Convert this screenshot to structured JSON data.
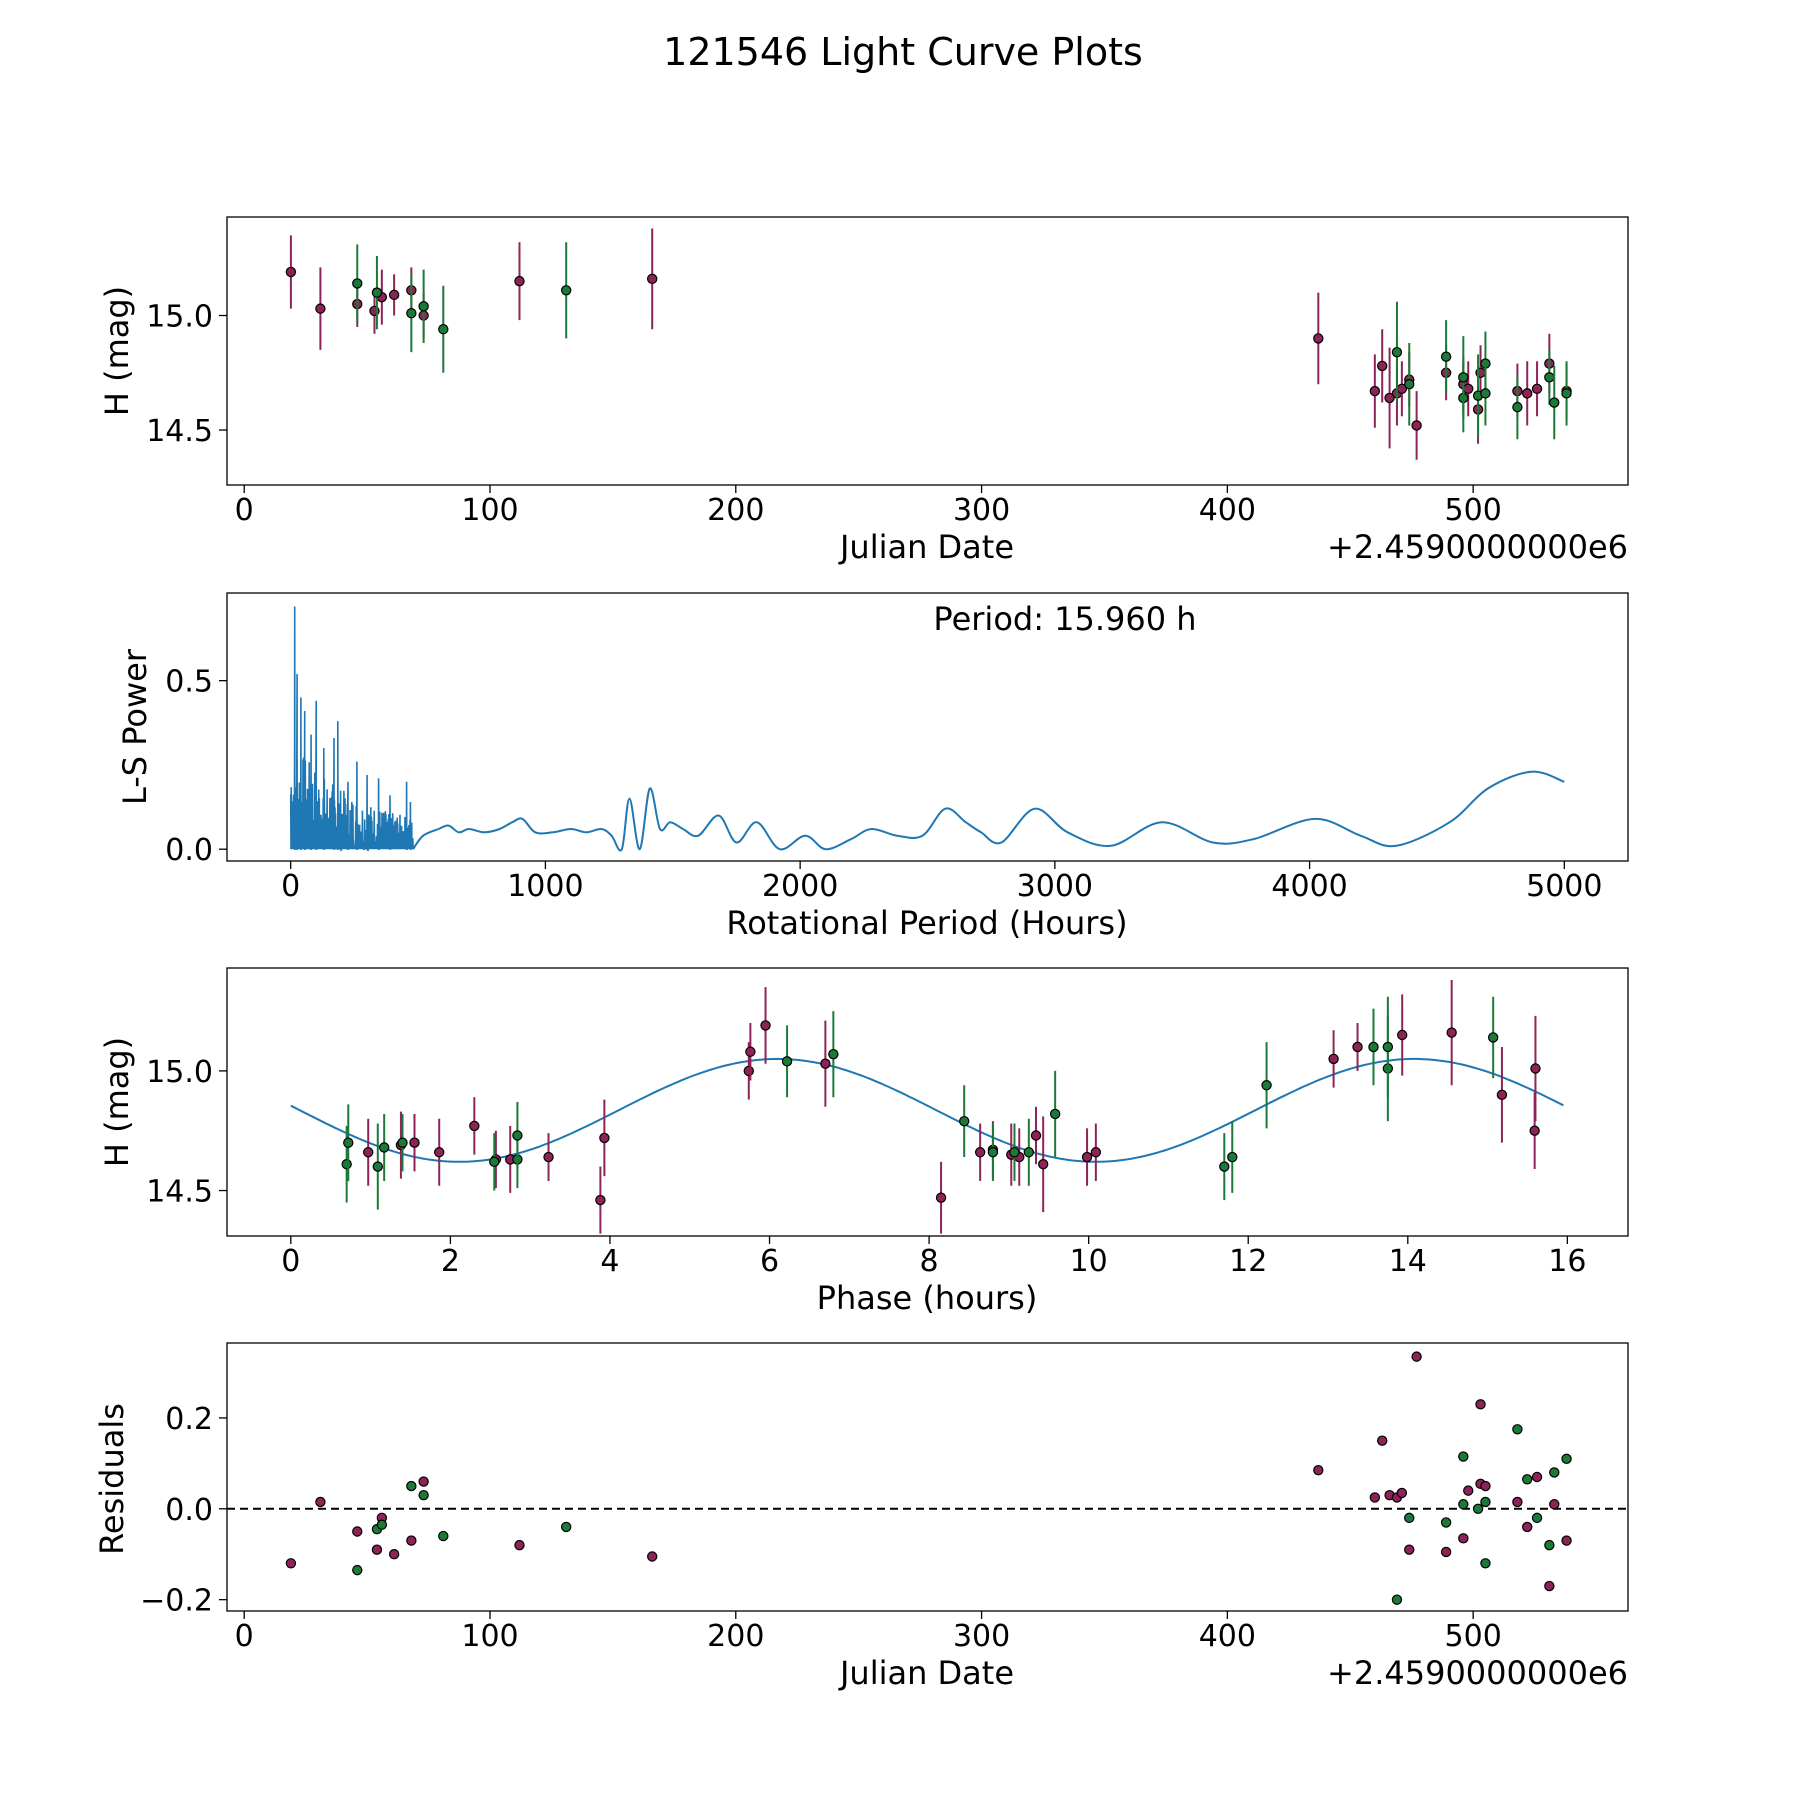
{
  "title": "121546 Light Curve Plots",
  "colors": {
    "magenta": "#8e2357",
    "green": "#1b7a37",
    "periodogram": "#1f77b4",
    "zero_line": "#000000"
  },
  "chart_data": [
    {
      "id": "lightcurve",
      "type": "scatter",
      "xlabel": "Julian Date",
      "ylabel": "H (mag)",
      "offset_text": "+2.4590000000e6",
      "xlim": [
        -7,
        563
      ],
      "ylim": [
        14.26,
        15.43
      ],
      "y_inverted": true,
      "xticks": [
        0,
        100,
        200,
        300,
        400,
        500
      ],
      "yticks": [
        15.0,
        14.5
      ],
      "series": [
        {
          "name": "magenta",
          "color": "#8e2357",
          "points": [
            [
              19,
              15.19,
              0.16
            ],
            [
              31,
              15.03,
              0.18
            ],
            [
              46,
              15.05,
              0.1
            ],
            [
              53,
              15.02,
              0.1
            ],
            [
              56,
              15.08,
              0.12
            ],
            [
              61,
              15.09,
              0.09
            ],
            [
              68,
              15.11,
              0.1
            ],
            [
              73,
              15.0,
              0.1
            ],
            [
              112,
              15.15,
              0.17
            ],
            [
              166,
              15.16,
              0.22
            ],
            [
              437,
              14.9,
              0.2
            ],
            [
              460,
              14.67,
              0.16
            ],
            [
              463,
              14.78,
              0.16
            ],
            [
              466,
              14.64,
              0.22
            ],
            [
              469,
              14.66,
              0.14
            ],
            [
              471,
              14.68,
              0.12
            ],
            [
              474,
              14.72,
              0.12
            ],
            [
              477,
              14.52,
              0.15
            ],
            [
              489,
              14.75,
              0.12
            ],
            [
              496,
              14.7,
              0.12
            ],
            [
              498,
              14.68,
              0.12
            ],
            [
              502,
              14.59,
              0.15
            ],
            [
              503,
              14.75,
              0.12
            ],
            [
              518,
              14.67,
              0.12
            ],
            [
              522,
              14.66,
              0.14
            ],
            [
              526,
              14.68,
              0.12
            ],
            [
              531,
              14.79,
              0.13
            ],
            [
              538,
              14.67,
              0.12
            ]
          ]
        },
        {
          "name": "green",
          "color": "#1b7a37",
          "points": [
            [
              46,
              15.14,
              0.17
            ],
            [
              54,
              15.1,
              0.16
            ],
            [
              68,
              15.01,
              0.17
            ],
            [
              73,
              15.04,
              0.16
            ],
            [
              81,
              14.94,
              0.19
            ],
            [
              131,
              15.11,
              0.21
            ],
            [
              469,
              14.84,
              0.22
            ],
            [
              474,
              14.7,
              0.18
            ],
            [
              489,
              14.82,
              0.16
            ],
            [
              496,
              14.64,
              0.15
            ],
            [
              496,
              14.73,
              0.18
            ],
            [
              502,
              14.65,
              0.18
            ],
            [
              505,
              14.79,
              0.14
            ],
            [
              505,
              14.66,
              0.14
            ],
            [
              518,
              14.6,
              0.14
            ],
            [
              531,
              14.73,
              0.12
            ],
            [
              533,
              14.62,
              0.16
            ],
            [
              538,
              14.66,
              0.14
            ]
          ]
        }
      ]
    },
    {
      "id": "periodogram",
      "type": "line",
      "xlabel": "Rotational Period (Hours)",
      "ylabel": "L-S Power",
      "annotation": "Period: 15.960 h",
      "xlim": [
        -250,
        5250
      ],
      "ylim": [
        -0.035,
        0.76
      ],
      "xticks": [
        0,
        1000,
        2000,
        3000,
        4000,
        5000
      ],
      "yticks": [
        0.0,
        0.5
      ],
      "peaks": [
        [
          15.96,
          0.72
        ],
        [
          25,
          0.52
        ],
        [
          40,
          0.45
        ],
        [
          55,
          0.41
        ],
        [
          80,
          0.34
        ],
        [
          100,
          0.44
        ],
        [
          130,
          0.3
        ],
        [
          170,
          0.33
        ],
        [
          185,
          0.38
        ],
        [
          225,
          0.2
        ],
        [
          260,
          0.26
        ],
        [
          300,
          0.22
        ],
        [
          345,
          0.21
        ],
        [
          390,
          0.16
        ],
        [
          455,
          0.2
        ],
        [
          470,
          0.14
        ]
      ],
      "smooth": [
        [
          480,
          0.0
        ],
        [
          520,
          0.04
        ],
        [
          580,
          0.06
        ],
        [
          620,
          0.07
        ],
        [
          660,
          0.05
        ],
        [
          700,
          0.06
        ],
        [
          760,
          0.05
        ],
        [
          820,
          0.06
        ],
        [
          870,
          0.08
        ],
        [
          910,
          0.09
        ],
        [
          960,
          0.05
        ],
        [
          1030,
          0.05
        ],
        [
          1100,
          0.06
        ],
        [
          1160,
          0.05
        ],
        [
          1220,
          0.06
        ],
        [
          1260,
          0.04
        ],
        [
          1300,
          0.0
        ],
        [
          1330,
          0.15
        ],
        [
          1370,
          0.0
        ],
        [
          1410,
          0.18
        ],
        [
          1450,
          0.06
        ],
        [
          1490,
          0.08
        ],
        [
          1540,
          0.06
        ],
        [
          1600,
          0.04
        ],
        [
          1680,
          0.1
        ],
        [
          1750,
          0.02
        ],
        [
          1830,
          0.08
        ],
        [
          1920,
          0.0
        ],
        [
          2020,
          0.04
        ],
        [
          2100,
          0.0
        ],
        [
          2200,
          0.03
        ],
        [
          2280,
          0.06
        ],
        [
          2380,
          0.04
        ],
        [
          2480,
          0.04
        ],
        [
          2570,
          0.12
        ],
        [
          2650,
          0.08
        ],
        [
          2710,
          0.05
        ],
        [
          2790,
          0.02
        ],
        [
          2920,
          0.12
        ],
        [
          3050,
          0.05
        ],
        [
          3220,
          0.01
        ],
        [
          3420,
          0.08
        ],
        [
          3620,
          0.02
        ],
        [
          3780,
          0.03
        ],
        [
          4020,
          0.09
        ],
        [
          4200,
          0.04
        ],
        [
          4340,
          0.01
        ],
        [
          4550,
          0.08
        ],
        [
          4700,
          0.18
        ],
        [
          4870,
          0.23
        ],
        [
          5000,
          0.2
        ]
      ]
    },
    {
      "id": "phased",
      "type": "scatter",
      "xlabel": "Phase (hours)",
      "ylabel": "H (mag)",
      "xlim": [
        -0.8,
        16.76
      ],
      "ylim": [
        14.31,
        15.43
      ],
      "y_inverted": true,
      "xticks": [
        0,
        2,
        4,
        6,
        8,
        10,
        12,
        14,
        16
      ],
      "yticks": [
        15.0,
        14.5
      ],
      "fit": {
        "mean": 14.835,
        "amplitude": 0.215,
        "period": 7.98,
        "phase_max": 6.1
      },
      "series": [
        {
          "name": "magenta",
          "color": "#8e2357",
          "points": [
            [
              0.97,
              14.66,
              0.14
            ],
            [
              1.38,
              14.69,
              0.14
            ],
            [
              1.55,
              14.7,
              0.12
            ],
            [
              1.86,
              14.66,
              0.14
            ],
            [
              2.3,
              14.77,
              0.12
            ],
            [
              2.57,
              14.63,
              0.12
            ],
            [
              2.75,
              14.63,
              0.14
            ],
            [
              3.23,
              14.64,
              0.1
            ],
            [
              3.88,
              14.46,
              0.14
            ],
            [
              3.93,
              14.72,
              0.16
            ],
            [
              5.74,
              15.0,
              0.12
            ],
            [
              5.76,
              15.08,
              0.12
            ],
            [
              5.95,
              15.19,
              0.16
            ],
            [
              6.7,
              15.03,
              0.18
            ],
            [
              8.15,
              14.47,
              0.15
            ],
            [
              8.64,
              14.66,
              0.12
            ],
            [
              8.8,
              14.67,
              0.12
            ],
            [
              9.03,
              14.65,
              0.13
            ],
            [
              9.13,
              14.64,
              0.12
            ],
            [
              9.34,
              14.73,
              0.12
            ],
            [
              9.43,
              14.61,
              0.2
            ],
            [
              9.98,
              14.64,
              0.12
            ],
            [
              10.09,
              14.66,
              0.12
            ],
            [
              13.07,
              15.05,
              0.12
            ],
            [
              13.37,
              15.1,
              0.1
            ],
            [
              13.93,
              15.15,
              0.17
            ],
            [
              14.55,
              15.16,
              0.22
            ],
            [
              15.18,
              14.9,
              0.2
            ],
            [
              15.59,
              14.75,
              0.16
            ],
            [
              15.6,
              15.01,
              0.22
            ]
          ]
        },
        {
          "name": "green",
          "color": "#1b7a37",
          "points": [
            [
              0.7,
              14.61,
              0.16
            ],
            [
              0.72,
              14.7,
              0.16
            ],
            [
              1.09,
              14.6,
              0.18
            ],
            [
              1.17,
              14.68,
              0.14
            ],
            [
              1.4,
              14.7,
              0.12
            ],
            [
              2.55,
              14.62,
              0.12
            ],
            [
              2.84,
              14.63,
              0.12
            ],
            [
              2.84,
              14.73,
              0.14
            ],
            [
              6.22,
              15.04,
              0.15
            ],
            [
              6.8,
              15.07,
              0.18
            ],
            [
              8.44,
              14.79,
              0.15
            ],
            [
              8.8,
              14.66,
              0.12
            ],
            [
              9.07,
              14.66,
              0.12
            ],
            [
              9.25,
              14.66,
              0.14
            ],
            [
              9.58,
              14.82,
              0.18
            ],
            [
              11.7,
              14.6,
              0.14
            ],
            [
              11.8,
              14.64,
              0.15
            ],
            [
              12.23,
              14.94,
              0.18
            ],
            [
              13.57,
              15.1,
              0.16
            ],
            [
              13.75,
              15.01,
              0.22
            ],
            [
              13.75,
              15.1,
              0.21
            ],
            [
              15.07,
              15.14,
              0.17
            ]
          ]
        }
      ]
    },
    {
      "id": "residuals",
      "type": "scatter",
      "xlabel": "Julian Date",
      "ylabel": "Residuals",
      "offset_text": "+2.4590000000e6",
      "xlim": [
        -7,
        563
      ],
      "ylim": [
        -0.225,
        0.365
      ],
      "xticks": [
        0,
        100,
        200,
        300,
        400,
        500
      ],
      "yticks": [
        0.2,
        0.0,
        -0.2
      ],
      "ytick_labels": [
        "0.2",
        "0.0",
        "−0.2"
      ],
      "zero_line": 0.0,
      "series": [
        {
          "name": "magenta",
          "color": "#8e2357",
          "points": [
            [
              19,
              -0.12
            ],
            [
              31,
              0.015
            ],
            [
              46,
              -0.05
            ],
            [
              54,
              -0.09
            ],
            [
              56,
              -0.02
            ],
            [
              61,
              -0.1
            ],
            [
              68,
              -0.07
            ],
            [
              73,
              0.06
            ],
            [
              112,
              -0.08
            ],
            [
              166,
              -0.105
            ],
            [
              437,
              0.085
            ],
            [
              460,
              0.025
            ],
            [
              463,
              0.15
            ],
            [
              466,
              0.03
            ],
            [
              469,
              0.025
            ],
            [
              471,
              0.035
            ],
            [
              474,
              -0.09
            ],
            [
              477,
              0.335
            ],
            [
              489,
              -0.095
            ],
            [
              498,
              0.04
            ],
            [
              503,
              0.055
            ],
            [
              505,
              0.05
            ],
            [
              518,
              0.015
            ],
            [
              522,
              -0.04
            ],
            [
              526,
              0.07
            ],
            [
              531,
              -0.17
            ],
            [
              533,
              0.01
            ],
            [
              538,
              -0.07
            ],
            [
              503,
              0.23
            ],
            [
              496,
              -0.065
            ]
          ]
        },
        {
          "name": "green",
          "color": "#1b7a37",
          "points": [
            [
              46,
              -0.135
            ],
            [
              54,
              -0.045
            ],
            [
              56,
              -0.035
            ],
            [
              68,
              0.05
            ],
            [
              73,
              0.03
            ],
            [
              81,
              -0.06
            ],
            [
              131,
              -0.04
            ],
            [
              469,
              -0.2
            ],
            [
              474,
              -0.02
            ],
            [
              489,
              -0.03
            ],
            [
              496,
              0.115
            ],
            [
              496,
              0.01
            ],
            [
              502,
              0.0
            ],
            [
              505,
              0.015
            ],
            [
              505,
              -0.12
            ],
            [
              518,
              0.175
            ],
            [
              522,
              0.065
            ],
            [
              526,
              -0.02
            ],
            [
              531,
              -0.08
            ],
            [
              533,
              0.08
            ],
            [
              538,
              0.11
            ]
          ]
        }
      ]
    }
  ]
}
